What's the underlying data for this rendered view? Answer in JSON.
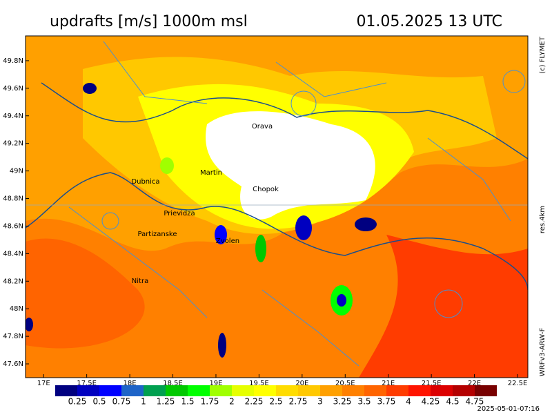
{
  "header": {
    "title": "updrafts [m/s] 1000m msl",
    "time": "01.05.2025 13 UTC"
  },
  "side": {
    "copyright": "(c) FLYMET",
    "resolution": "res.4km",
    "model": "WRFv3-ARW-F"
  },
  "footer": {
    "timestamp": "2025-05-01-07:16"
  },
  "map": {
    "xlim": [
      16.79,
      22.62
    ],
    "ylim": [
      47.5,
      49.98
    ],
    "xticks": [
      {
        "value": 17,
        "label": "17E"
      },
      {
        "value": 17.5,
        "label": "17.5E"
      },
      {
        "value": 18,
        "label": "18E"
      },
      {
        "value": 18.5,
        "label": "18.5E"
      },
      {
        "value": 19,
        "label": "19E"
      },
      {
        "value": 19.5,
        "label": "19.5E"
      },
      {
        "value": 20,
        "label": "20E"
      },
      {
        "value": 20.5,
        "label": "20.5E"
      },
      {
        "value": 21,
        "label": "21E"
      },
      {
        "value": 21.5,
        "label": "21.5E"
      },
      {
        "value": 22,
        "label": "22E"
      },
      {
        "value": 22.5,
        "label": "22.5E"
      }
    ],
    "yticks": [
      {
        "value": 47.6,
        "label": "47.6N"
      },
      {
        "value": 47.8,
        "label": "47.8N"
      },
      {
        "value": 48,
        "label": "48N"
      },
      {
        "value": 48.2,
        "label": "48.2N"
      },
      {
        "value": 48.4,
        "label": "48.4N"
      },
      {
        "value": 48.6,
        "label": "48.6N"
      },
      {
        "value": 48.8,
        "label": "48.8N"
      },
      {
        "value": 49,
        "label": "49N"
      },
      {
        "value": 49.2,
        "label": "49.2N"
      },
      {
        "value": 49.4,
        "label": "49.4N"
      },
      {
        "value": 49.6,
        "label": "49.6N"
      },
      {
        "value": 49.8,
        "label": "49.8N"
      }
    ],
    "cities": [
      "Orava",
      "Martin",
      "Dubnica",
      "Chopok",
      "Prievidza",
      "Partizanske",
      "Zvolen",
      "Nitra"
    ]
  },
  "colorbar": {
    "colors": [
      "#000080",
      "#0000c0",
      "#0000ff",
      "#1e64c8",
      "#00a050",
      "#00c800",
      "#00ff00",
      "#a0ff00",
      "#e6ff00",
      "#ffff00",
      "#ffdc00",
      "#ffc800",
      "#ffa000",
      "#ff8000",
      "#ff6400",
      "#ff3c00",
      "#ff1400",
      "#dc0000",
      "#b40000",
      "#780000"
    ],
    "bounds": [
      0.25,
      0.5,
      0.75,
      1,
      1.25,
      1.5,
      1.75,
      2,
      2.25,
      2.5,
      2.75,
      3,
      3.25,
      3.5,
      3.75,
      4,
      4.25,
      4.5,
      4.75
    ]
  }
}
